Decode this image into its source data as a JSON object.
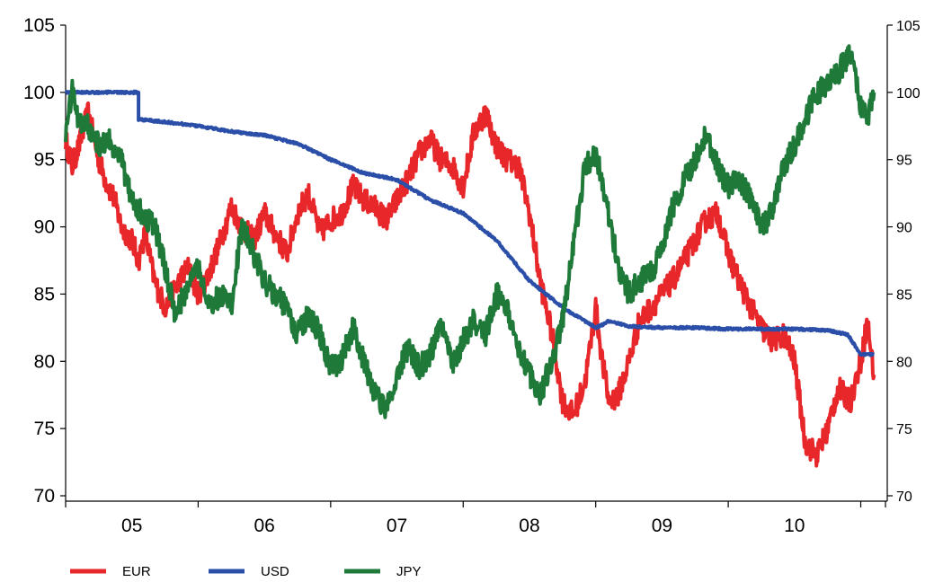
{
  "chart_data": {
    "type": "line",
    "x_tick_labels": [
      "05",
      "06",
      "07",
      "08",
      "09",
      "10"
    ],
    "x_range": [
      2004.0,
      2011.0
    ],
    "ylim": [
      70,
      105
    ],
    "y_ticks": [
      70,
      75,
      80,
      85,
      90,
      95,
      100,
      105
    ],
    "legend_position": "bottom-left",
    "grid": false,
    "series": [
      {
        "name": "EUR",
        "color": "#e8272b",
        "x": [
          2004.5,
          2004.55,
          2004.6,
          2004.67,
          2004.75,
          2004.8,
          2004.87,
          2004.92,
          2005.0,
          2005.05,
          2005.1,
          2005.17,
          2005.25,
          2005.33,
          2005.42,
          2005.5,
          2005.58,
          2005.67,
          2005.75,
          2005.83,
          2005.92,
          2006.0,
          2006.08,
          2006.17,
          2006.25,
          2006.33,
          2006.42,
          2006.5,
          2006.58,
          2006.67,
          2006.75,
          2006.83,
          2006.92,
          2007.0,
          2007.08,
          2007.17,
          2007.25,
          2007.33,
          2007.42,
          2007.5,
          2007.58,
          2007.67,
          2007.75,
          2007.83,
          2007.92,
          2008.0,
          2008.08,
          2008.17,
          2008.25,
          2008.33,
          2008.42,
          2008.5,
          2008.55,
          2008.6,
          2008.67,
          2008.75,
          2008.83,
          2008.92,
          2009.0,
          2009.08,
          2009.17,
          2009.25,
          2009.33,
          2009.42,
          2009.5,
          2009.58,
          2009.67,
          2009.75,
          2009.83,
          2009.92,
          2010.0,
          2010.08,
          2010.17,
          2010.25,
          2010.33,
          2010.42,
          2010.5,
          2010.55,
          2010.6
        ],
        "values": [
          96.5,
          94.5,
          96.0,
          98.5,
          95.0,
          93.5,
          92.0,
          90.0,
          89.0,
          87.5,
          89.5,
          86.0,
          84.0,
          85.5,
          87.0,
          85.0,
          86.5,
          89.0,
          91.5,
          90.0,
          89.0,
          91.0,
          89.5,
          88.0,
          91.0,
          92.5,
          89.5,
          90.5,
          91.0,
          93.0,
          92.0,
          91.5,
          90.5,
          92.0,
          93.5,
          95.5,
          96.5,
          95.0,
          94.5,
          93.0,
          97.0,
          98.5,
          96.0,
          95.0,
          94.5,
          91.0,
          86.0,
          82.0,
          77.0,
          76.0,
          78.5,
          84.0,
          80.0,
          77.0,
          77.5,
          80.0,
          83.0,
          84.0,
          85.0,
          86.0,
          87.5,
          89.0,
          90.5,
          91.0,
          88.0,
          86.0,
          84.0,
          82.5,
          81.5,
          82.0,
          80.0,
          74.0,
          73.0,
          75.0,
          78.0,
          77.0,
          80.0,
          83.0,
          79.0
        ]
      },
      {
        "name": "USD",
        "color": "#2b4fa8",
        "x": [
          2004.5,
          2004.75,
          2005.0,
          2005.05,
          2005.05,
          2005.25,
          2005.5,
          2005.75,
          2006.0,
          2006.25,
          2006.5,
          2006.75,
          2007.0,
          2007.25,
          2007.5,
          2007.75,
          2008.0,
          2008.25,
          2008.5,
          2008.55,
          2008.6,
          2008.75,
          2009.0,
          2009.25,
          2009.5,
          2009.75,
          2010.0,
          2010.25,
          2010.4,
          2010.5,
          2010.6
        ],
        "values": [
          100.0,
          100.0,
          100.0,
          100.0,
          98.0,
          97.8,
          97.5,
          97.1,
          96.8,
          96.2,
          95.0,
          94.0,
          93.5,
          92.0,
          91.0,
          89.0,
          86.0,
          84.0,
          82.5,
          82.7,
          83.0,
          82.6,
          82.5,
          82.5,
          82.4,
          82.4,
          82.4,
          82.3,
          82.0,
          80.5,
          80.5
        ]
      },
      {
        "name": "JPY",
        "color": "#1f7a3a",
        "x": [
          2004.5,
          2004.55,
          2004.6,
          2004.67,
          2004.75,
          2004.83,
          2004.92,
          2005.0,
          2005.08,
          2005.17,
          2005.25,
          2005.33,
          2005.42,
          2005.5,
          2005.58,
          2005.67,
          2005.75,
          2005.83,
          2005.92,
          2006.0,
          2006.08,
          2006.17,
          2006.25,
          2006.33,
          2006.42,
          2006.5,
          2006.58,
          2006.67,
          2006.75,
          2006.83,
          2006.92,
          2007.0,
          2007.08,
          2007.17,
          2007.25,
          2007.33,
          2007.42,
          2007.5,
          2007.58,
          2007.67,
          2007.75,
          2007.83,
          2007.92,
          2008.0,
          2008.08,
          2008.17,
          2008.25,
          2008.33,
          2008.42,
          2008.5,
          2008.58,
          2008.67,
          2008.75,
          2008.83,
          2008.92,
          2009.0,
          2009.08,
          2009.17,
          2009.25,
          2009.33,
          2009.42,
          2009.5,
          2009.58,
          2009.67,
          2009.75,
          2009.83,
          2009.92,
          2010.0,
          2010.08,
          2010.17,
          2010.25,
          2010.33,
          2010.42,
          2010.5,
          2010.55,
          2010.6
        ],
        "values": [
          97.0,
          100.0,
          98.0,
          97.5,
          96.0,
          96.5,
          95.0,
          92.0,
          91.0,
          90.0,
          87.0,
          83.5,
          85.5,
          87.0,
          84.0,
          85.0,
          84.0,
          90.0,
          88.0,
          86.0,
          85.0,
          84.0,
          82.0,
          83.5,
          82.0,
          79.5,
          80.0,
          82.5,
          80.0,
          77.5,
          76.5,
          79.0,
          81.0,
          79.5,
          80.5,
          83.0,
          80.0,
          81.5,
          83.0,
          82.0,
          85.0,
          84.0,
          81.0,
          79.0,
          77.5,
          80.0,
          83.0,
          88.5,
          94.5,
          95.5,
          92.0,
          87.0,
          85.0,
          86.0,
          86.5,
          88.5,
          91.5,
          93.5,
          95.0,
          97.0,
          94.5,
          93.0,
          93.5,
          92.0,
          90.0,
          91.0,
          94.5,
          96.0,
          98.0,
          100.0,
          100.5,
          101.5,
          103.0,
          99.0,
          98.0,
          100.0
        ]
      }
    ]
  }
}
